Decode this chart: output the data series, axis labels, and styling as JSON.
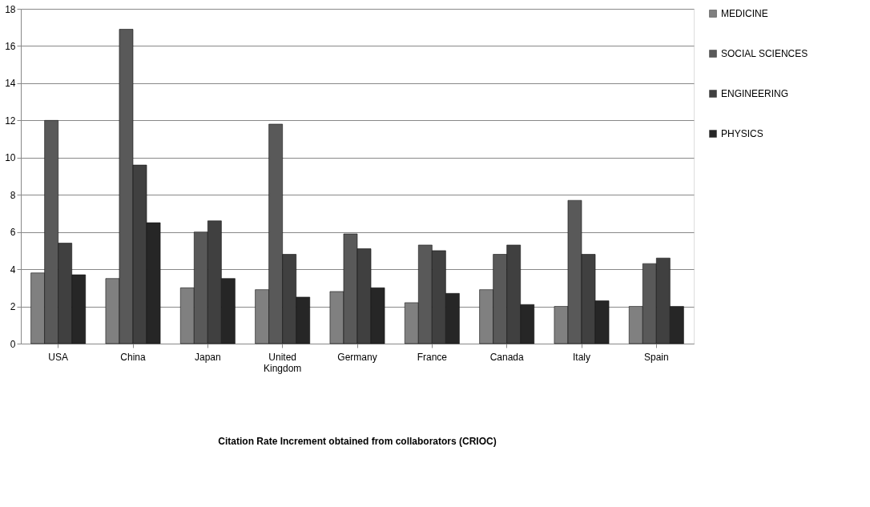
{
  "chart_data": {
    "type": "bar",
    "annotations": [
      "Citation Rate Increment obtained from collaborators (CRIOC)"
    ],
    "categories": [
      "USA",
      "China",
      "Japan",
      "United Kingdom",
      "Germany",
      "France",
      "Canada",
      "Italy",
      "Spain"
    ],
    "series": [
      {
        "name": "MEDICINE",
        "color": "#808080",
        "values": [
          3.8,
          3.5,
          3.0,
          2.9,
          2.8,
          2.2,
          2.9,
          2.0,
          2.0
        ]
      },
      {
        "name": "SOCIAL SCIENCES",
        "color": "#595959",
        "values": [
          12.0,
          16.9,
          6.0,
          11.8,
          5.9,
          5.3,
          4.8,
          7.7,
          4.3
        ]
      },
      {
        "name": "ENGINEERING",
        "color": "#404040",
        "values": [
          5.4,
          9.6,
          6.6,
          4.8,
          5.1,
          5.0,
          5.3,
          4.8,
          4.6
        ]
      },
      {
        "name": "PHYSICS",
        "color": "#262626",
        "values": [
          3.7,
          6.5,
          3.5,
          2.5,
          3.0,
          2.7,
          2.1,
          2.3,
          2.0
        ]
      }
    ],
    "ylim": [
      0,
      18
    ],
    "yticks": [
      0,
      2,
      4,
      6,
      8,
      10,
      12,
      14,
      16,
      18
    ],
    "grid": "y",
    "legend": "right"
  }
}
